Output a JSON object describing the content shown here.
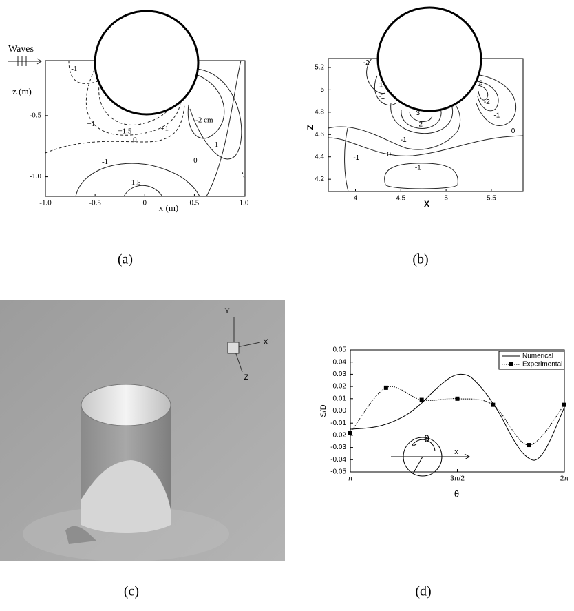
{
  "chart_data": [
    {
      "type": "contour",
      "caption": "(a)",
      "annotation": "Waves",
      "xlabel": "x (m)",
      "ylabel": "z (m)",
      "xlim": [
        -1.0,
        1.01
      ],
      "ylim": [
        -1.16,
        -0.05
      ],
      "xticks": [
        {
          "value": -1.0,
          "label": "-1.0"
        },
        -0.5,
        0,
        0.5,
        {
          "value": 1.0,
          "label": "1.0"
        }
      ],
      "yticks": [
        -0.5,
        {
          "value": -1.0,
          "label": "-1.0"
        }
      ],
      "contour_labels": [
        {
          "value": -1,
          "x": -0.71,
          "z": -0.12
        },
        {
          "value": 1.5,
          "label": "+1.5",
          "x": -0.2,
          "z": -0.63
        },
        {
          "value": 1,
          "label": "+1",
          "x": -0.54,
          "z": -0.57
        },
        {
          "value": 1,
          "label": "+1",
          "x": 0.2,
          "z": -0.61
        },
        {
          "value": 0,
          "x": -0.1,
          "z": -0.7
        },
        {
          "value": -2,
          "label": "-2 cm",
          "x": 0.6,
          "z": -0.54
        },
        {
          "value": -1,
          "x": 0.71,
          "z": -0.74
        },
        {
          "value": 0,
          "x": 0.51,
          "z": -0.87
        },
        {
          "value": -1,
          "x": -0.4,
          "z": -0.88
        },
        {
          "value": -1.5,
          "x": -0.1,
          "z": -1.05
        }
      ]
    },
    {
      "type": "contour",
      "caption": "(b)",
      "xlabel": "X",
      "ylabel": "Z",
      "xlim": [
        3.7,
        5.85
      ],
      "ylim": [
        4.09,
        5.28
      ],
      "xticks": [
        4,
        4.5,
        5,
        5.5
      ],
      "yticks": [
        4.2,
        4.4,
        4.6,
        4.8,
        5,
        5.2
      ],
      "contour_labels": [
        {
          "value": -2,
          "x": 4.12,
          "z": 5.24
        },
        {
          "value": -1,
          "x": 4.27,
          "z": 5.04
        },
        {
          "value": -1,
          "x": 4.29,
          "z": 4.94
        },
        {
          "value": 3,
          "x": 4.69,
          "z": 4.79
        },
        {
          "value": 2,
          "x": 4.72,
          "z": 4.69
        },
        {
          "value": -1,
          "x": 4.53,
          "z": 4.55
        },
        {
          "value": 0,
          "x": 4.37,
          "z": 4.42
        },
        {
          "value": -1,
          "x": 4.01,
          "z": 4.39
        },
        {
          "value": -1,
          "x": 4.69,
          "z": 4.3
        },
        {
          "value": -3,
          "x": 5.37,
          "z": 5.06
        },
        {
          "value": -2,
          "x": 5.45,
          "z": 4.89
        },
        {
          "value": -1,
          "x": 5.56,
          "z": 4.77
        },
        {
          "value": 0,
          "x": 5.74,
          "z": 4.63
        }
      ]
    },
    {
      "type": "render",
      "caption": "(c)",
      "axis_labels": [
        "Y",
        "X",
        "Z"
      ]
    },
    {
      "type": "line",
      "caption": "(d)",
      "xlabel": "θ",
      "ylabel": "S/D",
      "xlim": [
        3.14159,
        6.28319
      ],
      "ylim": [
        -0.05,
        0.05
      ],
      "xticks": [
        {
          "value": 3.14159,
          "label": "π"
        },
        {
          "value": 4.71239,
          "label": "3π/2"
        },
        {
          "value": 6.28319,
          "label": "2π"
        }
      ],
      "yticks": [
        0.05,
        0.04,
        0.03,
        0.02,
        0.01,
        {
          "value": 0,
          "label": "0.00"
        },
        -0.01,
        -0.02,
        -0.03,
        -0.04,
        -0.05
      ],
      "legend": "upper right",
      "inset_labels": [
        "θ",
        "x"
      ],
      "series": [
        {
          "name": "Numerical",
          "color": "#000000",
          "style": "solid",
          "markers": false,
          "x": [
            3.14159,
            3.4,
            3.6,
            3.8,
            4.0,
            4.2,
            4.4,
            4.6,
            4.75,
            4.9,
            5.05,
            5.2,
            5.35,
            5.5,
            5.65,
            5.8,
            5.9,
            6.0,
            6.1,
            6.2,
            6.28319
          ],
          "values": [
            -0.015,
            -0.014,
            -0.012,
            -0.008,
            -0.002,
            0.007,
            0.018,
            0.027,
            0.03,
            0.028,
            0.02,
            0.009,
            -0.004,
            -0.02,
            -0.033,
            -0.04,
            -0.039,
            -0.032,
            -0.021,
            -0.008,
            0.003
          ]
        },
        {
          "name": "Experimental",
          "color": "#000000",
          "style": "dotted",
          "markers": true,
          "x": [
            3.14159,
            3.66519,
            4.18879,
            4.71239,
            5.23599,
            5.75959,
            6.28319
          ],
          "values": [
            -0.018,
            0.019,
            0.009,
            0.01,
            0.005,
            -0.028,
            0.005
          ]
        }
      ]
    }
  ]
}
